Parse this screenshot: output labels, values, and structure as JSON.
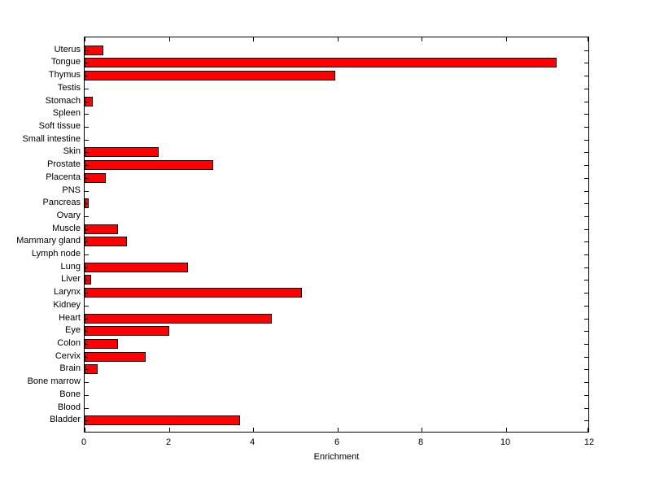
{
  "chart_data": {
    "type": "bar",
    "orientation": "horizontal",
    "title": "",
    "xlabel": "Enrichment",
    "ylabel": "",
    "xlim": [
      0,
      12
    ],
    "xticks": [
      0,
      2,
      4,
      6,
      8,
      10,
      12
    ],
    "grid": false,
    "legend": null,
    "bar_color": "#ff0000",
    "bar_edge_color": "#000000",
    "axis_color": "#000000",
    "background_color": "#ffffff",
    "categories_top_to_bottom": [
      "Uterus",
      "Tongue",
      "Thymus",
      "Testis",
      "Stomach",
      "Spleen",
      "Soft tissue",
      "Small intestine",
      "Skin",
      "Prostate",
      "Placenta",
      "PNS",
      "Pancreas",
      "Ovary",
      "Muscle",
      "Mammary gland",
      "Lymph node",
      "Lung",
      "Liver",
      "Larynx",
      "Kidney",
      "Heart",
      "Eye",
      "Colon",
      "Cervix",
      "Brain",
      "Bone marrow",
      "Bone",
      "Blood",
      "Bladder"
    ],
    "values": [
      0.45,
      11.2,
      5.95,
      0,
      0.2,
      0,
      0,
      0,
      1.75,
      3.05,
      0.5,
      0,
      0.1,
      0,
      0.8,
      1.0,
      0,
      2.45,
      0.15,
      5.15,
      0,
      4.45,
      2.0,
      0.8,
      1.45,
      0.3,
      0,
      0,
      0,
      3.7
    ]
  }
}
